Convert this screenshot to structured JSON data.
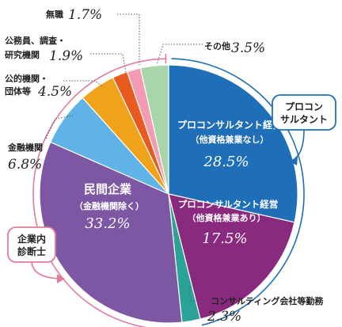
{
  "chart_data": {
    "type": "pie",
    "title": "",
    "slices": [
      {
        "name": "プロコンサルタント経営（他資格兼業なし）",
        "label_line1": "プロコンサルタント経営",
        "label_line2": "（他資格兼業なし）",
        "value": 28.5,
        "value_text": "28.5%",
        "color": "#1f6fb8"
      },
      {
        "name": "プロコンサルタント経営（他資格兼業あり）",
        "label_line1": "プロコンサルタント経営",
        "label_line2": "（他資格兼業あり）",
        "value": 17.5,
        "value_text": "17.5%",
        "color": "#8a2a7f"
      },
      {
        "name": "コンサルティング会社等勤務",
        "label_line1": "コンサルティング会社等勤務",
        "value": 2.3,
        "value_text": "2.3%",
        "color": "#2aa298"
      },
      {
        "name": "民間企業（金融機関除く）",
        "label_line1": "民間企業",
        "label_line2": "（金融機関除く）",
        "value": 33.2,
        "value_text": "33.2%",
        "color": "#7d56a4"
      },
      {
        "name": "金融機関",
        "label_line1": "金融機関",
        "value": 6.8,
        "value_text": "6.8%",
        "color": "#5fb3e6"
      },
      {
        "name": "公的機関・団体等",
        "label_line1": "公的機関・",
        "label_line2": "団体等",
        "value": 4.5,
        "value_text": "4.5%",
        "color": "#f0a21a"
      },
      {
        "name": "公務員、調査・研究機関",
        "label_line1": "公務員、調査・",
        "label_line2": "研究機関",
        "value": 1.9,
        "value_text": "1.9%",
        "color": "#e85a1e"
      },
      {
        "name": "無職",
        "label_line1": "無職",
        "value": 1.7,
        "value_text": "1.7%",
        "color": "#f29bb3"
      },
      {
        "name": "その他",
        "label_line1": "その他",
        "value": 3.5,
        "value_text": "3.5%",
        "color": "#a8d5a9"
      }
    ],
    "groups": [
      {
        "label_line1": "プロコン",
        "label_line2": "サルタント",
        "color": "#1f6fb8"
      },
      {
        "label_line1": "企業内",
        "label_line2": "診断士",
        "color": "#e37d96"
      }
    ]
  }
}
